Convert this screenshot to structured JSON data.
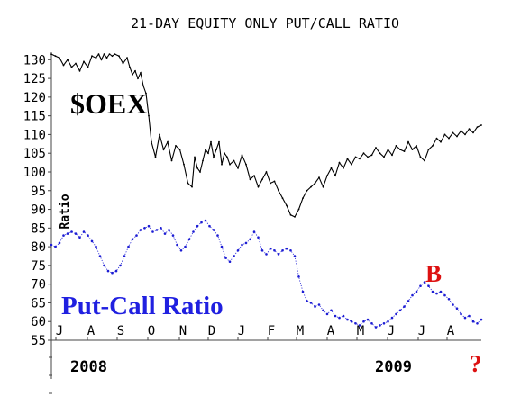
{
  "chart_data": {
    "type": "line",
    "title": "21-DAY EQUITY ONLY PUT/CALL RATIO",
    "ylabel": "Ratio",
    "ylim": [
      55,
      132
    ],
    "yticks": [
      130,
      125,
      120,
      115,
      110,
      105,
      100,
      95,
      90,
      85,
      80,
      75,
      70,
      65,
      60,
      55
    ],
    "x_month_labels": [
      "J",
      "A",
      "S",
      "O",
      "N",
      "D",
      "J",
      "F",
      "M",
      "A",
      "M",
      "J",
      "J",
      "A"
    ],
    "year_labels": [
      "2008",
      "2009"
    ],
    "grid": false,
    "colors": {
      "oex": "#000000",
      "ratio": "#1c1cd4",
      "annotation": "#dd1111",
      "ratio_label": "#2020e0"
    },
    "annotations": {
      "oex_label": "$OEX",
      "ratio_label": "Put-Call Ratio",
      "marker": "B",
      "question": "?"
    },
    "series": [
      {
        "name": "$OEX",
        "x": [
          0,
          3,
          6,
          9,
          12,
          15,
          18,
          21,
          24,
          27,
          30,
          33,
          35,
          37,
          39,
          41,
          43,
          45,
          47,
          50,
          53,
          56,
          58,
          60,
          62,
          64,
          66,
          68,
          70,
          72,
          74,
          77,
          80,
          83,
          86,
          89,
          92,
          95,
          98,
          101,
          104,
          106,
          108,
          110,
          112,
          114,
          116,
          118,
          120,
          122,
          124,
          126,
          128,
          130,
          132,
          135,
          138,
          141,
          144,
          147,
          150,
          153,
          156,
          159,
          162,
          165,
          168,
          171,
          174,
          177,
          180,
          183,
          186,
          189,
          192,
          195,
          198,
          201,
          204,
          207,
          210,
          213,
          216,
          219,
          222,
          225,
          228,
          231,
          234,
          237,
          240,
          243,
          246,
          249,
          252,
          255,
          258,
          261,
          264,
          267,
          270,
          273,
          276,
          279,
          282,
          285,
          288,
          291,
          294,
          297,
          300,
          303,
          306,
          309,
          312,
          315,
          318
        ],
        "values": [
          131.5,
          131.0,
          130.5,
          128.5,
          130.0,
          128.0,
          129.0,
          127.0,
          129.5,
          128.0,
          131.0,
          130.5,
          131.5,
          130.0,
          131.5,
          130.5,
          131.5,
          131.0,
          131.5,
          131.0,
          129.0,
          130.5,
          128.0,
          126.0,
          127.0,
          125.0,
          126.5,
          123.0,
          121.0,
          115.0,
          108.0,
          104.0,
          110.0,
          106.0,
          108.0,
          103.0,
          107.0,
          106.0,
          102.0,
          97.0,
          96.0,
          104.0,
          101.0,
          100.0,
          103.0,
          106.0,
          105.0,
          108.0,
          104.0,
          106.0,
          108.0,
          102.0,
          105.0,
          104.0,
          102.0,
          103.0,
          101.0,
          104.5,
          102.0,
          98.0,
          99.0,
          96.0,
          98.0,
          100.0,
          97.0,
          97.5,
          95.0,
          93.0,
          91.0,
          88.5,
          88.0,
          90.0,
          93.0,
          95.0,
          96.0,
          97.0,
          98.5,
          96.0,
          99.0,
          101.0,
          99.0,
          102.5,
          101.0,
          103.5,
          102.0,
          104.0,
          103.5,
          105.0,
          104.0,
          104.5,
          106.5,
          105.0,
          104.0,
          106.0,
          104.5,
          107.0,
          106.0,
          105.5,
          108.0,
          106.0,
          107.0,
          104.0,
          103.0,
          106.0,
          107.0,
          109.0,
          108.0,
          110.0,
          109.0,
          110.5,
          109.5,
          111.0,
          110.0,
          111.5,
          110.5,
          112.0,
          112.5
        ]
      },
      {
        "name": "Put-Call Ratio",
        "x": [
          0,
          3,
          6,
          9,
          12,
          15,
          18,
          21,
          24,
          27,
          30,
          33,
          36,
          39,
          42,
          45,
          48,
          51,
          54,
          57,
          60,
          63,
          66,
          69,
          72,
          75,
          78,
          81,
          84,
          87,
          90,
          93,
          96,
          99,
          102,
          105,
          108,
          111,
          114,
          117,
          120,
          123,
          126,
          129,
          132,
          135,
          138,
          141,
          144,
          147,
          150,
          153,
          156,
          159,
          162,
          165,
          168,
          171,
          174,
          177,
          180,
          183,
          186,
          189,
          192,
          195,
          198,
          201,
          204,
          207,
          210,
          213,
          216,
          219,
          222,
          225,
          228,
          231,
          234,
          237,
          240,
          243,
          246,
          249,
          252,
          255,
          258,
          261,
          264,
          267,
          270,
          273,
          276,
          279,
          282,
          285,
          288,
          291,
          294,
          297,
          300,
          303,
          306,
          309,
          312,
          315,
          318
        ],
        "values": [
          80.5,
          80.0,
          81.0,
          83.0,
          83.5,
          84.0,
          83.5,
          82.5,
          84.0,
          83.0,
          81.5,
          80.0,
          77.5,
          75.0,
          73.5,
          73.0,
          73.5,
          75.0,
          77.5,
          80.0,
          82.0,
          83.0,
          84.5,
          85.0,
          85.5,
          84.0,
          84.5,
          85.0,
          83.5,
          84.5,
          83.0,
          80.5,
          79.0,
          80.0,
          82.0,
          84.0,
          85.5,
          86.5,
          87.0,
          85.5,
          84.5,
          83.0,
          80.0,
          77.0,
          76.0,
          77.5,
          79.0,
          80.5,
          81.0,
          82.0,
          84.0,
          82.5,
          79.0,
          78.0,
          79.5,
          79.0,
          78.0,
          79.0,
          79.5,
          79.0,
          77.5,
          72.0,
          68.0,
          65.5,
          65.0,
          64.0,
          64.5,
          63.0,
          62.0,
          63.0,
          61.5,
          61.0,
          61.5,
          60.5,
          60.0,
          59.5,
          59.0,
          60.0,
          60.5,
          59.5,
          58.5,
          59.0,
          59.5,
          60.0,
          61.0,
          62.0,
          63.0,
          64.0,
          65.5,
          67.0,
          68.0,
          69.5,
          70.5,
          69.5,
          68.0,
          67.5,
          68.0,
          67.0,
          66.0,
          64.5,
          63.5,
          62.0,
          61.0,
          61.5,
          60.0,
          59.5,
          60.5
        ]
      }
    ]
  }
}
